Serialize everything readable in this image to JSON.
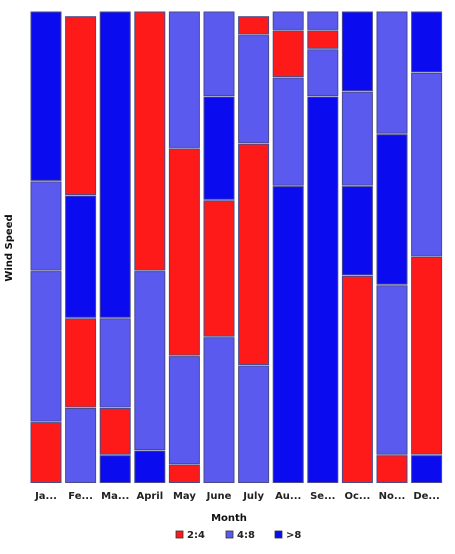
{
  "chart_data": {
    "type": "bar",
    "stacked": true,
    "normalized": true,
    "xlabel": "Month",
    "ylabel": "Wind Speed",
    "categories": [
      "Ja...",
      "Fe...",
      "Ma...",
      "April",
      "May",
      "June",
      "July",
      "Au...",
      "Se...",
      "Oc...",
      "No...",
      "De..."
    ],
    "legend_position": "bottom",
    "grid": false,
    "bars": [
      {
        "segments": [
          {
            "series": "2:4",
            "value": 0.13
          },
          {
            "series": "4:8",
            "value": 0.32
          },
          {
            "series": "4:8",
            "value": 0.19
          },
          {
            "series": ">8",
            "value": 0.36
          }
        ]
      },
      {
        "segments": [
          {
            "series": "4:8",
            "value": 0.16
          },
          {
            "series": "2:4",
            "value": 0.19
          },
          {
            "series": ">8",
            "value": 0.26
          },
          {
            "series": "2:4",
            "value": 0.38
          }
        ]
      },
      {
        "segments": [
          {
            "series": ">8",
            "value": 0.06
          },
          {
            "series": "2:4",
            "value": 0.1
          },
          {
            "series": "4:8",
            "value": 0.19
          },
          {
            "series": ">8",
            "value": 0.65
          }
        ]
      },
      {
        "segments": [
          {
            "series": ">8",
            "value": 0.07
          },
          {
            "series": "4:8",
            "value": 0.38
          },
          {
            "series": "2:4",
            "value": 0.55
          }
        ]
      },
      {
        "segments": [
          {
            "series": "2:4",
            "value": 0.04
          },
          {
            "series": "4:8",
            "value": 0.23
          },
          {
            "series": "2:4",
            "value": 0.44
          },
          {
            "series": "4:8",
            "value": 0.29
          }
        ]
      },
      {
        "segments": [
          {
            "series": "4:8",
            "value": 0.31
          },
          {
            "series": "2:4",
            "value": 0.29
          },
          {
            "series": ">8",
            "value": 0.22
          },
          {
            "series": "4:8",
            "value": 0.18
          }
        ]
      },
      {
        "segments": [
          {
            "series": "4:8",
            "value": 0.25
          },
          {
            "series": "2:4",
            "value": 0.47
          },
          {
            "series": "4:8",
            "value": 0.23
          },
          {
            "series": "2:4",
            "value": 0.04
          }
        ]
      },
      {
        "segments": [
          {
            "series": ">8",
            "value": 0.63
          },
          {
            "series": "4:8",
            "value": 0.23
          },
          {
            "series": "2:4",
            "value": 0.1
          },
          {
            "series": "4:8",
            "value": 0.04
          }
        ]
      },
      {
        "segments": [
          {
            "series": ">8",
            "value": 0.82
          },
          {
            "series": "4:8",
            "value": 0.1
          },
          {
            "series": "2:4",
            "value": 0.04
          },
          {
            "series": "4:8",
            "value": 0.04
          }
        ]
      },
      {
        "segments": [
          {
            "series": "2:4",
            "value": 0.44
          },
          {
            "series": ">8",
            "value": 0.19
          },
          {
            "series": "4:8",
            "value": 0.2
          },
          {
            "series": ">8",
            "value": 0.17
          }
        ]
      },
      {
        "segments": [
          {
            "series": "2:4",
            "value": 0.06
          },
          {
            "series": "4:8",
            "value": 0.36
          },
          {
            "series": ">8",
            "value": 0.32
          },
          {
            "series": "4:8",
            "value": 0.26
          }
        ]
      },
      {
        "segments": [
          {
            "series": ">8",
            "value": 0.06
          },
          {
            "series": "2:4",
            "value": 0.42
          },
          {
            "series": "4:8",
            "value": 0.39
          },
          {
            "series": ">8",
            "value": 0.13
          }
        ]
      }
    ],
    "series": [
      {
        "name": "2:4",
        "color": "#ff1a1a"
      },
      {
        "name": "4:8",
        "color": "#5a5aee"
      },
      {
        "name": ">8",
        "color": "#0b0bf0"
      }
    ]
  }
}
